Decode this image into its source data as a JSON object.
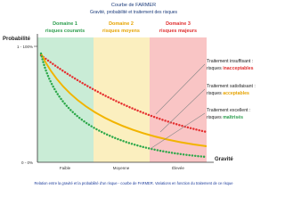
{
  "header": {
    "title": "Courbe de FARMER",
    "subtitle": "Gravité, probabilité et traitement des risques"
  },
  "axes": {
    "y_label": "Probabilité",
    "y_top": "1 - 100%",
    "y_bottom": "0 - 0%",
    "x_label": "Gravité",
    "x_levels": [
      "Faible",
      "Moyenne",
      "Élevée"
    ]
  },
  "domains": [
    {
      "name": "Domaine 1",
      "label": "risques courants"
    },
    {
      "name": "Domaine 2",
      "label": "risques moyens"
    },
    {
      "name": "Domaine 3",
      "label": "risques majeurs"
    }
  ],
  "annotations": [
    {
      "line1": "Traitement insuffisant :",
      "prefix": "risques",
      "highlight": "inacceptables"
    },
    {
      "line1": "Traitement satisfaisant :",
      "prefix": "risques",
      "highlight": "acceptables"
    },
    {
      "line1": "Traitement excellent :",
      "prefix": "risques",
      "highlight": "maîtrisés"
    }
  ],
  "caption": "Relation entre la gravité et la probabilité d'un risque - courbe de FARMER. Variations en fonction du traitement de ce risque"
}
